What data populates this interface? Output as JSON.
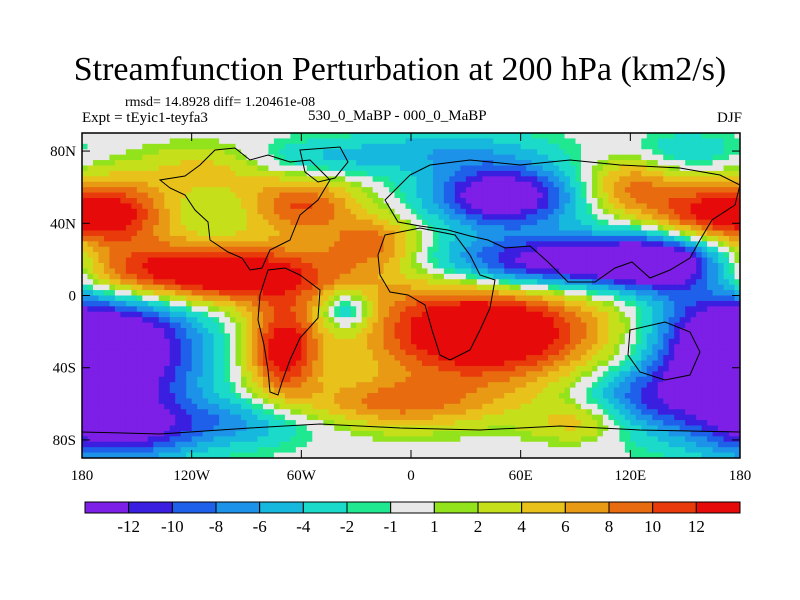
{
  "title": "Streamfunction Perturbation at 200 hPa (km2/s)",
  "stats_line": "rmsd= 14.8928 diff= 1.20461e-08",
  "experiment": "Expt = tEyic1-teyfa3",
  "comparison": "530_0_MaBP - 000_0_MaBP",
  "season": "DJF",
  "chart_data": {
    "type": "heatmap",
    "title": "Streamfunction Perturbation at 200 hPa (km2/s)",
    "xlabel": "",
    "ylabel": "",
    "xlim": [
      -180,
      180
    ],
    "ylim": [
      -90,
      90
    ],
    "x_ticks": [
      {
        "value": -180,
        "label": "180"
      },
      {
        "value": -120,
        "label": "120W"
      },
      {
        "value": -60,
        "label": "60W"
      },
      {
        "value": 0,
        "label": "0"
      },
      {
        "value": 60,
        "label": "60E"
      },
      {
        "value": 120,
        "label": "120E"
      },
      {
        "value": 180,
        "label": "180"
      }
    ],
    "y_ticks": [
      {
        "value": 80,
        "label": "80N"
      },
      {
        "value": 40,
        "label": "40N"
      },
      {
        "value": 0,
        "label": "0"
      },
      {
        "value": -40,
        "label": "40S"
      },
      {
        "value": -80,
        "label": "80S"
      }
    ],
    "colorbar": {
      "colors": [
        "#7d1fe6",
        "#3a1fe0",
        "#1f60ea",
        "#1c92e8",
        "#17b8dd",
        "#1bdaca",
        "#1fe891",
        "#e8e8e8",
        "#92e21c",
        "#c5e01a",
        "#e8c21a",
        "#e89a14",
        "#e86c0f",
        "#e83a0a",
        "#e60a0a"
      ],
      "labels": [
        "-12",
        "-10",
        "-8",
        "-6",
        "-4",
        "-2",
        "-1",
        "1",
        "2",
        "4",
        "6",
        "8",
        "10",
        "12"
      ]
    },
    "field_centers": [
      {
        "lon": -150,
        "lat": -30,
        "value": -14,
        "sx": 28,
        "sy": 28
      },
      {
        "lon": -160,
        "lat": -75,
        "value": -10,
        "sx": 30,
        "sy": 12
      },
      {
        "lon": 50,
        "lat": 55,
        "value": -16,
        "sx": 28,
        "sy": 12
      },
      {
        "lon": 80,
        "lat": 18,
        "value": -16,
        "sx": 48,
        "sy": 11
      },
      {
        "lon": 140,
        "lat": 18,
        "value": -14,
        "sx": 25,
        "sy": 12
      },
      {
        "lon": 165,
        "lat": -30,
        "value": -16,
        "sx": 25,
        "sy": 26
      },
      {
        "lon": 125,
        "lat": -58,
        "value": -8,
        "sx": 25,
        "sy": 14
      },
      {
        "lon": -90,
        "lat": -70,
        "value": -6,
        "sx": 30,
        "sy": 10
      },
      {
        "lon": -35,
        "lat": -8,
        "value": -8,
        "sx": 10,
        "sy": 8
      },
      {
        "lon": -55,
        "lat": 75,
        "value": -4,
        "sx": 30,
        "sy": 8
      },
      {
        "lon": 20,
        "lat": 80,
        "value": -5,
        "sx": 40,
        "sy": 9
      },
      {
        "lon": 150,
        "lat": 80,
        "value": -4,
        "sx": 22,
        "sy": 8
      },
      {
        "lon": -120,
        "lat": 12,
        "value": 18,
        "sx": 60,
        "sy": 12
      },
      {
        "lon": -160,
        "lat": 45,
        "value": 12,
        "sx": 22,
        "sy": 14
      },
      {
        "lon": -60,
        "lat": 50,
        "value": 10,
        "sx": 22,
        "sy": 12
      },
      {
        "lon": 40,
        "lat": -20,
        "value": 18,
        "sx": 45,
        "sy": 20
      },
      {
        "lon": -70,
        "lat": -30,
        "value": 14,
        "sx": 14,
        "sy": 18
      },
      {
        "lon": -10,
        "lat": -60,
        "value": 8,
        "sx": 40,
        "sy": 10
      },
      {
        "lon": 160,
        "lat": 45,
        "value": 12,
        "sx": 22,
        "sy": 12
      },
      {
        "lon": 120,
        "lat": 60,
        "value": 8,
        "sx": 18,
        "sy": 12
      },
      {
        "lon": -20,
        "lat": 30,
        "value": 8,
        "sx": 18,
        "sy": 10
      },
      {
        "lon": -110,
        "lat": 70,
        "value": 5,
        "sx": 25,
        "sy": 10
      },
      {
        "lon": 95,
        "lat": -70,
        "value": 6,
        "sx": 20,
        "sy": 8
      }
    ]
  }
}
